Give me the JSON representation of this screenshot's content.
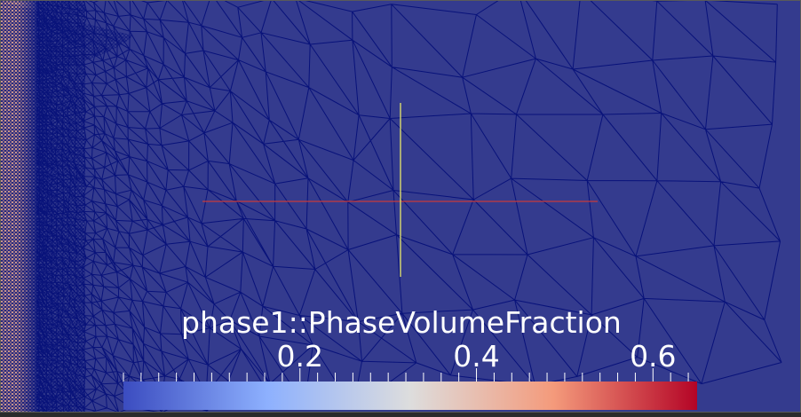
{
  "colorbar": {
    "title": "phase1::PhaseVolumeFraction",
    "tick_labels": [
      "0.2",
      "0.4",
      "0.6"
    ],
    "tick_values": [
      0.2,
      0.4,
      0.6
    ],
    "range": [
      0.0,
      0.65
    ],
    "colormap": "Cool to Warm",
    "stops": [
      "#3b4cc0",
      "#8db0fe",
      "#dddddd",
      "#f49a7b",
      "#b40426"
    ]
  },
  "colors": {
    "background": "#343b8e",
    "mesh_edge": "#08127a",
    "high_phase": "#e4a88e",
    "axis_x": "#c83b3b",
    "axis_y": "#e8e86a",
    "text": "#ffffff"
  }
}
